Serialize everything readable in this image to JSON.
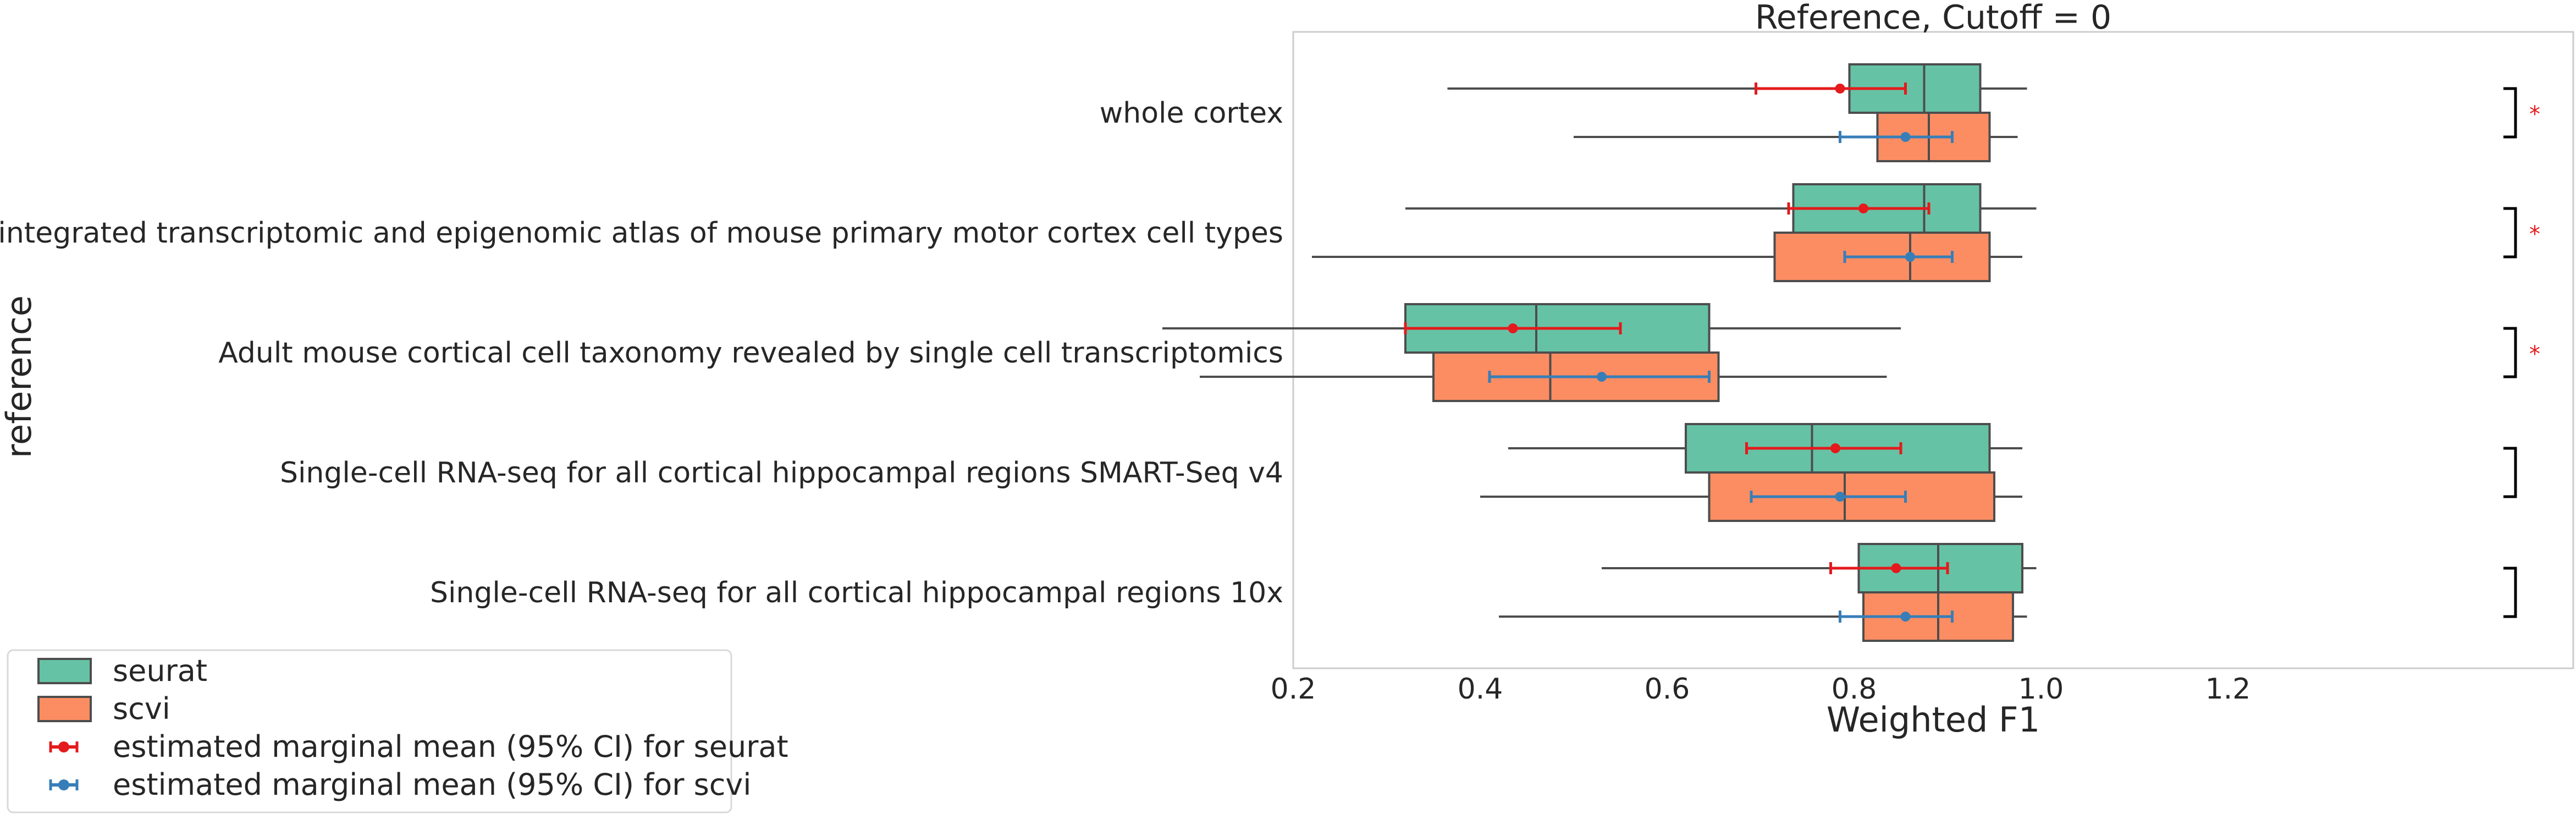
{
  "chart_data": {
    "type": "box",
    "orientation": "horizontal",
    "title": "Reference, Cutoff = 0",
    "xlabel": "Weighted F1",
    "ylabel": "reference",
    "xlim": [
      0.0,
      1.33
    ],
    "x_ticks": [
      0.2,
      0.4,
      0.6,
      0.8,
      1.0,
      1.2
    ],
    "x_tick_labels": [
      "0.2",
      "0.4",
      "0.6",
      "0.8",
      "1.0",
      "1.2"
    ],
    "grid": false,
    "legend_position": "bottom-left",
    "categories": [
      "whole cortex",
      "An integrated transcriptomic and epigenomic atlas of mouse primary motor cortex cell types",
      "Adult mouse cortical cell taxonomy revealed by single cell transcriptomics",
      "Single-cell RNA-seq for all cortical  hippocampal regions SMART-Seq v4",
      "Single-cell RNA-seq for all cortical  hippocampal regions 10x"
    ],
    "series": [
      {
        "name": "seurat",
        "color": "#66c2a5",
        "boxes": [
          {
            "whislo": 0.365,
            "q1": 0.795,
            "med": 0.875,
            "q3": 0.935,
            "whishi": 0.985
          },
          {
            "whislo": 0.32,
            "q1": 0.735,
            "med": 0.875,
            "q3": 0.935,
            "whishi": 0.995
          },
          {
            "whislo": 0.06,
            "q1": 0.32,
            "med": 0.46,
            "q3": 0.645,
            "whishi": 0.85
          },
          {
            "whislo": 0.43,
            "q1": 0.62,
            "med": 0.755,
            "q3": 0.945,
            "whishi": 0.98
          },
          {
            "whislo": 0.53,
            "q1": 0.805,
            "med": 0.89,
            "q3": 0.98,
            "whishi": 0.995
          }
        ]
      },
      {
        "name": "scvi",
        "color": "#fc8d62",
        "boxes": [
          {
            "whislo": 0.5,
            "q1": 0.825,
            "med": 0.88,
            "q3": 0.945,
            "whishi": 0.975
          },
          {
            "whislo": 0.22,
            "q1": 0.715,
            "med": 0.86,
            "q3": 0.945,
            "whishi": 0.98
          },
          {
            "whislo": 0.1,
            "q1": 0.35,
            "med": 0.475,
            "q3": 0.655,
            "whishi": 0.835
          },
          {
            "whislo": 0.4,
            "q1": 0.645,
            "med": 0.79,
            "q3": 0.95,
            "whishi": 0.98
          },
          {
            "whislo": 0.42,
            "q1": 0.81,
            "med": 0.89,
            "q3": 0.97,
            "whishi": 0.985
          }
        ]
      }
    ],
    "marginal_means": [
      {
        "name": "estimated marginal mean (95% CI) for seurat",
        "color": "#e41a1c",
        "points": [
          {
            "mean": 0.785,
            "lo": 0.695,
            "hi": 0.855
          },
          {
            "mean": 0.81,
            "lo": 0.73,
            "hi": 0.88
          },
          {
            "mean": 0.435,
            "lo": 0.32,
            "hi": 0.55
          },
          {
            "mean": 0.78,
            "lo": 0.685,
            "hi": 0.85
          },
          {
            "mean": 0.845,
            "lo": 0.775,
            "hi": 0.9
          }
        ]
      },
      {
        "name": "estimated marginal mean (95% CI) for scvi",
        "color": "#377eb8",
        "points": [
          {
            "mean": 0.855,
            "lo": 0.785,
            "hi": 0.905
          },
          {
            "mean": 0.86,
            "lo": 0.79,
            "hi": 0.905
          },
          {
            "mean": 0.53,
            "lo": 0.41,
            "hi": 0.645
          },
          {
            "mean": 0.785,
            "lo": 0.69,
            "hi": 0.855
          },
          {
            "mean": 0.855,
            "lo": 0.785,
            "hi": 0.905
          }
        ]
      }
    ],
    "significance": {
      "marker": "*",
      "marker_color": "#e41a1c",
      "bracket_color": "#000000",
      "flags": [
        true,
        true,
        true,
        false,
        false
      ]
    }
  }
}
